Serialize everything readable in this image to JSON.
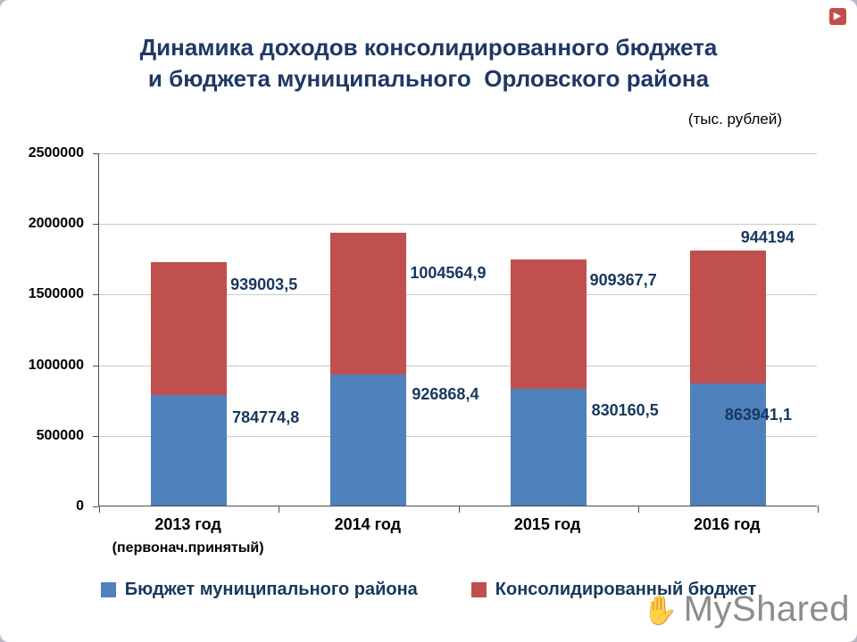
{
  "page": {
    "title_line1": "Динамика доходов консолидированного бюджета",
    "title_line2": "и бюджета муниципального  Орловского района",
    "units_note": "(тыс. рублей)"
  },
  "chart_data": {
    "type": "bar",
    "stacked": true,
    "title": "Динамика доходов консолидированного бюджета и бюджета муниципального Орловского района",
    "units": "тыс. рублей",
    "categories": [
      {
        "label": "2013 год",
        "sublabel": "(первонач.принятый)"
      },
      {
        "label": "2014 год",
        "sublabel": ""
      },
      {
        "label": "2015 год",
        "sublabel": ""
      },
      {
        "label": "2016 год",
        "sublabel": ""
      }
    ],
    "series": [
      {
        "name": "Бюджет муниципального района",
        "color": "#4F81BD",
        "values": [
          784774.8,
          926868.4,
          830160.5,
          863941.1
        ],
        "labels": [
          "784774,8",
          "926868,4",
          "830160,5",
          "863941,1"
        ]
      },
      {
        "name": "Консолидированный бюджет",
        "color": "#C0504D",
        "values": [
          939003.5,
          1004564.9,
          909367.7,
          944194
        ],
        "labels": [
          "939003,5",
          "1004564,9",
          "909367,7",
          "944194"
        ]
      }
    ],
    "ylim": [
      0,
      2500000
    ],
    "ytick_values": [
      0,
      500000,
      1000000,
      1500000,
      2000000,
      2500000
    ],
    "ytick_labels": [
      "0",
      "500000",
      "1000000",
      "1500000",
      "2000000",
      "2500000"
    ],
    "grid": true,
    "legend_position": "bottom"
  },
  "watermark": {
    "text": "MyShared"
  },
  "icons": {
    "logo": "▶",
    "hand": "✋"
  }
}
